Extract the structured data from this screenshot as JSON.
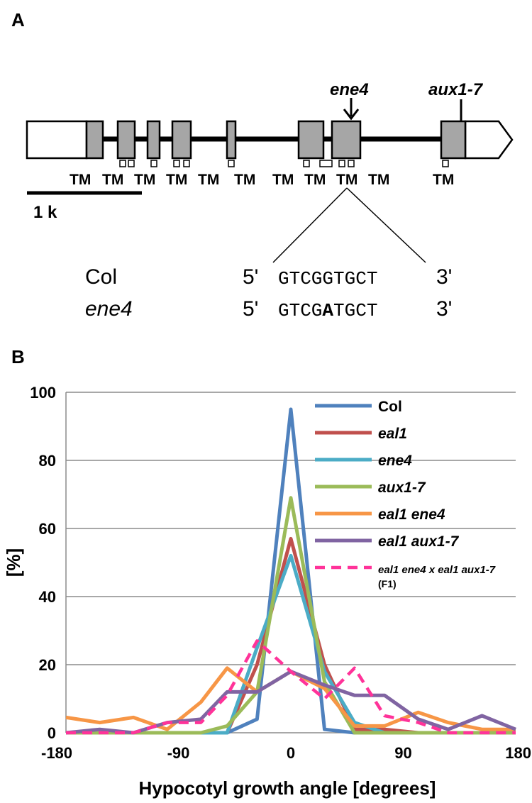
{
  "panel_a": {
    "label": "A",
    "gene_labels": {
      "ene4": "ene4",
      "aux": "aux1-7"
    },
    "tm_label": "TM",
    "scale_label": "1 k",
    "seq": {
      "col_name": "Col",
      "mut_name": "ene4",
      "five": "5'",
      "three": "3'",
      "col_seq": "GTCGGTGCT",
      "mut_pre": "GTCG",
      "mut_base": "A",
      "mut_post": "TGCT"
    }
  },
  "panel_b": {
    "label": "B"
  },
  "chart_data": {
    "type": "line",
    "title": "",
    "xlabel": "Hypocotyl growth angle [degrees]",
    "ylabel": "[%]",
    "xlim": [
      -180,
      180
    ],
    "ylim": [
      0,
      100
    ],
    "x_ticks": [
      "-180",
      "-90",
      "0",
      "90",
      "180"
    ],
    "y_ticks": [
      "0",
      "20",
      "40",
      "60",
      "80",
      "100"
    ],
    "grid": true,
    "legend": "top-right",
    "x": [
      -180,
      -153,
      -126,
      -99,
      -72,
      -51,
      -27,
      0,
      27,
      51,
      75,
      102,
      126,
      153,
      180
    ],
    "series": [
      {
        "name": "Col",
        "color": "#4F81BD",
        "dashed": false,
        "values": [
          0,
          0,
          0,
          0,
          0,
          0,
          4,
          95,
          1,
          0,
          0,
          0,
          0,
          0,
          0
        ]
      },
      {
        "name": "eal1",
        "color": "#C0504D",
        "dashed": false,
        "values": [
          0,
          0,
          0,
          0,
          0,
          0,
          20,
          57,
          20,
          1,
          1,
          0,
          0,
          0,
          0
        ]
      },
      {
        "name": "ene4",
        "color": "#4BACC6",
        "dashed": false,
        "values": [
          0,
          0,
          0,
          0,
          0,
          0,
          25,
          52,
          18,
          3,
          0,
          0,
          0,
          0,
          0
        ]
      },
      {
        "name": "aux1-7",
        "color": "#9BBB59",
        "dashed": false,
        "values": [
          0,
          0,
          0,
          0,
          0,
          2,
          12,
          69,
          15,
          0,
          0,
          0,
          0,
          0,
          0
        ]
      },
      {
        "name": "eal1 ene4",
        "color": "#F79646",
        "dashed": false,
        "values": [
          4.5,
          3,
          4.5,
          1,
          9,
          19,
          12,
          18,
          13,
          2,
          2,
          6,
          3,
          1,
          1
        ]
      },
      {
        "name": "eal1 aux1-7",
        "color": "#8064A2",
        "dashed": false,
        "values": [
          0,
          1,
          0,
          3,
          4,
          12,
          12,
          18,
          14,
          11,
          11,
          4,
          1,
          5,
          1
        ]
      },
      {
        "name": "eal1 ene4 x eal1 aux1-7",
        "sub": "(F1)",
        "color": "#FF3399",
        "dashed": true,
        "values": [
          0,
          0,
          0,
          3,
          3,
          11,
          27,
          18,
          10,
          19,
          5,
          3,
          0,
          0,
          0
        ]
      }
    ]
  }
}
